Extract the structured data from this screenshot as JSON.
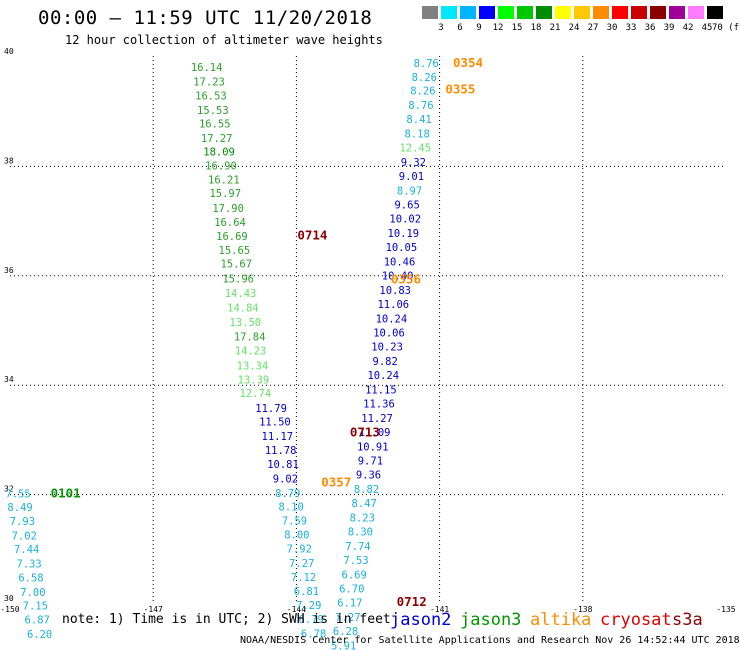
{
  "title": "00:00 – 11:59 UTC 11/20/2018",
  "subtitle": "12 hour collection of altimeter wave heights",
  "note": "note:  1) Time is in UTC;  2) SWH is in feet",
  "footer": "NOAA/NESDIS Center for Satellite Applications and Research    Nov 26 14:52:44 UTC 2018",
  "legend": {
    "unit": "(ft)",
    "labels": [
      "3",
      "6",
      "9",
      "12",
      "15",
      "18",
      "21",
      "24",
      "27",
      "30",
      "33",
      "36",
      "39",
      "42",
      "45",
      "70"
    ],
    "colors": [
      "#808080",
      "#00e8ff",
      "#00b4ff",
      "#0000ff",
      "#00ff00",
      "#00c800",
      "#008c00",
      "#ffff00",
      "#ffc800",
      "#ff8c00",
      "#ff0000",
      "#c80000",
      "#8b0000",
      "#a0009a",
      "#ff7cff",
      "#000000"
    ]
  },
  "missions": [
    {
      "name": "jason2",
      "color": "#0000cc"
    },
    {
      "name": "jason3",
      "color": "#009600"
    },
    {
      "name": "altika",
      "color": "#ff8c00"
    },
    {
      "name": "cryosat",
      "color": "#e00000"
    },
    {
      "name": "s3a",
      "color": "#8b0000"
    }
  ],
  "axes": {
    "lon_ticks": [
      "-150",
      "-147",
      "-144",
      "-141",
      "-138",
      "-135"
    ],
    "lat_ticks": [
      "30",
      "32",
      "34",
      "36",
      "38",
      "40"
    ]
  },
  "pass_labels": [
    {
      "text": "0354",
      "color": "#ff8c00",
      "lon": -140.72,
      "lat": 39.82
    },
    {
      "text": "0355",
      "color": "#ff8c00",
      "lon": -140.88,
      "lat": 39.33
    },
    {
      "text": "0356",
      "color": "#ff8c00",
      "lon": -142.02,
      "lat": 35.86
    },
    {
      "text": "0714",
      "color": "#8b0000",
      "lon": -143.98,
      "lat": 36.66
    },
    {
      "text": "0713",
      "color": "#8b0000",
      "lon": -142.88,
      "lat": 33.06
    },
    {
      "text": "0357",
      "color": "#ff8c00",
      "lon": -143.48,
      "lat": 32.15
    },
    {
      "text": "0101",
      "color": "#009600",
      "lon": -149.15,
      "lat": 31.95
    },
    {
      "text": "0712",
      "color": "#8b0000",
      "lon": -141.9,
      "lat": 29.96
    }
  ],
  "track_data": [
    {
      "text": "16.14",
      "color": "#2ca02c",
      "lon": -145.88,
      "lat": 39.74
    },
    {
      "text": "17.23",
      "color": "#2ca02c",
      "lon": -145.83,
      "lat": 39.48
    },
    {
      "text": "16.53",
      "color": "#2ca02c",
      "lon": -145.79,
      "lat": 39.22
    },
    {
      "text": "15.53",
      "color": "#2ca02c",
      "lon": -145.75,
      "lat": 38.96
    },
    {
      "text": "16.55",
      "color": "#2ca02c",
      "lon": -145.71,
      "lat": 38.71
    },
    {
      "text": "17.27",
      "color": "#2ca02c",
      "lon": -145.67,
      "lat": 38.45
    },
    {
      "text": "18.09",
      "color": "#008c00",
      "lon": -145.62,
      "lat": 38.2
    },
    {
      "text": "16.90",
      "color": "#2ca02c",
      "lon": -145.58,
      "lat": 37.94
    },
    {
      "text": "16.21",
      "color": "#2ca02c",
      "lon": -145.52,
      "lat": 37.69
    },
    {
      "text": "15.97",
      "color": "#2ca02c",
      "lon": -145.49,
      "lat": 37.44
    },
    {
      "text": "17.90",
      "color": "#2ca02c",
      "lon": -145.43,
      "lat": 37.17
    },
    {
      "text": "16.64",
      "color": "#2ca02c",
      "lon": -145.39,
      "lat": 36.91
    },
    {
      "text": "16.69",
      "color": "#2ca02c",
      "lon": -145.35,
      "lat": 36.65
    },
    {
      "text": "15.65",
      "color": "#2ca02c",
      "lon": -145.3,
      "lat": 36.4
    },
    {
      "text": "15.67",
      "color": "#2ca02c",
      "lon": -145.26,
      "lat": 36.15
    },
    {
      "text": "15.96",
      "color": "#2ca02c",
      "lon": -145.22,
      "lat": 35.88
    },
    {
      "text": "14.43",
      "color": "#66e066",
      "lon": -145.17,
      "lat": 35.61
    },
    {
      "text": "14.84",
      "color": "#66e066",
      "lon": -145.12,
      "lat": 35.35
    },
    {
      "text": "13.50",
      "color": "#66e066",
      "lon": -145.07,
      "lat": 35.08
    },
    {
      "text": "17.84",
      "color": "#2ca02c",
      "lon": -144.98,
      "lat": 34.82
    },
    {
      "text": "14.23",
      "color": "#66e066",
      "lon": -144.96,
      "lat": 34.56
    },
    {
      "text": "13.34",
      "color": "#66e066",
      "lon": -144.92,
      "lat": 34.29
    },
    {
      "text": "13.39",
      "color": "#66e066",
      "lon": -144.9,
      "lat": 34.03
    },
    {
      "text": "12.74",
      "color": "#66e066",
      "lon": -144.86,
      "lat": 33.78
    },
    {
      "text": "11.79",
      "color": "#0000cc",
      "lon": -144.53,
      "lat": 33.51
    },
    {
      "text": "11.50",
      "color": "#0000cc",
      "lon": -144.45,
      "lat": 33.26
    },
    {
      "text": "11.17",
      "color": "#0000cc",
      "lon": -144.4,
      "lat": 33.0
    },
    {
      "text": "11.78",
      "color": "#0000cc",
      "lon": -144.33,
      "lat": 32.74
    },
    {
      "text": "10.81",
      "color": "#0000cc",
      "lon": -144.28,
      "lat": 32.49
    },
    {
      "text": "9.02",
      "color": "#0000cc",
      "lon": -144.23,
      "lat": 32.22
    },
    {
      "text": "8.79",
      "color": "#1ab0e0",
      "lon": -144.18,
      "lat": 31.96
    },
    {
      "text": "8.10",
      "color": "#1ab0e0",
      "lon": -144.11,
      "lat": 31.71
    },
    {
      "text": "7.59",
      "color": "#1ab0e0",
      "lon": -144.04,
      "lat": 31.45
    },
    {
      "text": "8.00",
      "color": "#1ab0e0",
      "lon": -143.99,
      "lat": 31.2
    },
    {
      "text": "7.92",
      "color": "#1ab0e0",
      "lon": -143.94,
      "lat": 30.94
    },
    {
      "text": "7.27",
      "color": "#1ab0e0",
      "lon": -143.89,
      "lat": 30.68
    },
    {
      "text": "7.12",
      "color": "#1ab0e0",
      "lon": -143.85,
      "lat": 30.42
    },
    {
      "text": "6.81",
      "color": "#1ab0e0",
      "lon": -143.79,
      "lat": 30.16
    },
    {
      "text": "7.29",
      "color": "#1ab0e0",
      "lon": -143.74,
      "lat": 29.91
    },
    {
      "text": "6.79",
      "color": "#1ab0e0",
      "lon": -143.69,
      "lat": 29.65
    },
    {
      "text": "6.78",
      "color": "#1ab0e0",
      "lon": -143.64,
      "lat": 29.39
    },
    {
      "text": "8.76",
      "color": "#1ab0e0",
      "lon": -141.28,
      "lat": 39.82
    },
    {
      "text": "8.26",
      "color": "#1ab0e0",
      "lon": -141.32,
      "lat": 39.56
    },
    {
      "text": "8.26",
      "color": "#1ab0e0",
      "lon": -141.35,
      "lat": 39.31
    },
    {
      "text": "8.76",
      "color": "#1ab0e0",
      "lon": -141.39,
      "lat": 39.05
    },
    {
      "text": "8.41",
      "color": "#1ab0e0",
      "lon": -141.43,
      "lat": 38.79
    },
    {
      "text": "8.18",
      "color": "#1ab0e0",
      "lon": -141.47,
      "lat": 38.53
    },
    {
      "text": "12.45",
      "color": "#66e066",
      "lon": -141.51,
      "lat": 38.27
    },
    {
      "text": "9.32",
      "color": "#0000cc",
      "lon": -141.55,
      "lat": 38.01
    },
    {
      "text": "9.01",
      "color": "#0000cc",
      "lon": -141.59,
      "lat": 37.75
    },
    {
      "text": "8.97",
      "color": "#1ab0e0",
      "lon": -141.63,
      "lat": 37.49
    },
    {
      "text": "9.65",
      "color": "#0000cc",
      "lon": -141.68,
      "lat": 37.23
    },
    {
      "text": "10.02",
      "color": "#0000cc",
      "lon": -141.72,
      "lat": 36.97
    },
    {
      "text": "10.19",
      "color": "#0000cc",
      "lon": -141.76,
      "lat": 36.71
    },
    {
      "text": "10.05",
      "color": "#0000cc",
      "lon": -141.8,
      "lat": 36.45
    },
    {
      "text": "10.46",
      "color": "#0000cc",
      "lon": -141.84,
      "lat": 36.19
    },
    {
      "text": "10.40",
      "color": "#0000cc",
      "lon": -141.88,
      "lat": 35.93
    },
    {
      "text": "10.83",
      "color": "#0000cc",
      "lon": -141.93,
      "lat": 35.67
    },
    {
      "text": "11.06",
      "color": "#0000cc",
      "lon": -141.97,
      "lat": 35.41
    },
    {
      "text": "10.24",
      "color": "#0000cc",
      "lon": -142.01,
      "lat": 35.15
    },
    {
      "text": "10.06",
      "color": "#0000cc",
      "lon": -142.06,
      "lat": 34.89
    },
    {
      "text": "10.23",
      "color": "#0000cc",
      "lon": -142.1,
      "lat": 34.63
    },
    {
      "text": "9.82",
      "color": "#0000cc",
      "lon": -142.14,
      "lat": 34.37
    },
    {
      "text": "10.24",
      "color": "#0000cc",
      "lon": -142.18,
      "lat": 34.11
    },
    {
      "text": "11.15",
      "color": "#0000cc",
      "lon": -142.23,
      "lat": 33.85
    },
    {
      "text": "11.36",
      "color": "#0000cc",
      "lon": -142.27,
      "lat": 33.59
    },
    {
      "text": "11.27",
      "color": "#0000cc",
      "lon": -142.31,
      "lat": 33.33
    },
    {
      "text": "11.09",
      "color": "#0000cc",
      "lon": -142.36,
      "lat": 33.07
    },
    {
      "text": "10.91",
      "color": "#0000cc",
      "lon": -142.4,
      "lat": 32.81
    },
    {
      "text": "9.71",
      "color": "#0000cc",
      "lon": -142.45,
      "lat": 32.55
    },
    {
      "text": "9.36",
      "color": "#0000cc",
      "lon": -142.49,
      "lat": 32.29
    },
    {
      "text": "8.82",
      "color": "#1ab0e0",
      "lon": -142.53,
      "lat": 32.03
    },
    {
      "text": "8.47",
      "color": "#1ab0e0",
      "lon": -142.58,
      "lat": 31.77
    },
    {
      "text": "8.23",
      "color": "#1ab0e0",
      "lon": -142.62,
      "lat": 31.51
    },
    {
      "text": "8.30",
      "color": "#1ab0e0",
      "lon": -142.66,
      "lat": 31.25
    },
    {
      "text": "7.74",
      "color": "#1ab0e0",
      "lon": -142.71,
      "lat": 30.99
    },
    {
      "text": "7.53",
      "color": "#1ab0e0",
      "lon": -142.75,
      "lat": 30.73
    },
    {
      "text": "6.69",
      "color": "#1ab0e0",
      "lon": -142.79,
      "lat": 30.47
    },
    {
      "text": "6.70",
      "color": "#1ab0e0",
      "lon": -142.84,
      "lat": 30.21
    },
    {
      "text": "6.17",
      "color": "#1ab0e0",
      "lon": -142.88,
      "lat": 29.95
    },
    {
      "text": "7.27",
      "color": "#1ab0e0",
      "lon": -142.92,
      "lat": 29.69
    },
    {
      "text": "6.28",
      "color": "#1ab0e0",
      "lon": -142.97,
      "lat": 29.43
    },
    {
      "text": "5.91",
      "color": "#1ab0e0",
      "lon": -143.01,
      "lat": 29.17
    },
    {
      "text": "7.55",
      "color": "#1ab0e0",
      "lon": -149.83,
      "lat": 31.95
    },
    {
      "text": "8.49",
      "color": "#1ab0e0",
      "lon": -149.79,
      "lat": 31.7
    },
    {
      "text": "7.93",
      "color": "#1ab0e0",
      "lon": -149.74,
      "lat": 31.44
    },
    {
      "text": "7.02",
      "color": "#1ab0e0",
      "lon": -149.7,
      "lat": 31.18
    },
    {
      "text": "7.44",
      "color": "#1ab0e0",
      "lon": -149.65,
      "lat": 30.93
    },
    {
      "text": "7.33",
      "color": "#1ab0e0",
      "lon": -149.6,
      "lat": 30.67
    },
    {
      "text": "6.58",
      "color": "#1ab0e0",
      "lon": -149.56,
      "lat": 30.41
    },
    {
      "text": "7.00",
      "color": "#1ab0e0",
      "lon": -149.52,
      "lat": 30.15
    },
    {
      "text": "7.15",
      "color": "#1ab0e0",
      "lon": -149.47,
      "lat": 29.9
    },
    {
      "text": "6.87",
      "color": "#1ab0e0",
      "lon": -149.43,
      "lat": 29.64
    },
    {
      "text": "6.20",
      "color": "#1ab0e0",
      "lon": -149.38,
      "lat": 29.38
    }
  ]
}
